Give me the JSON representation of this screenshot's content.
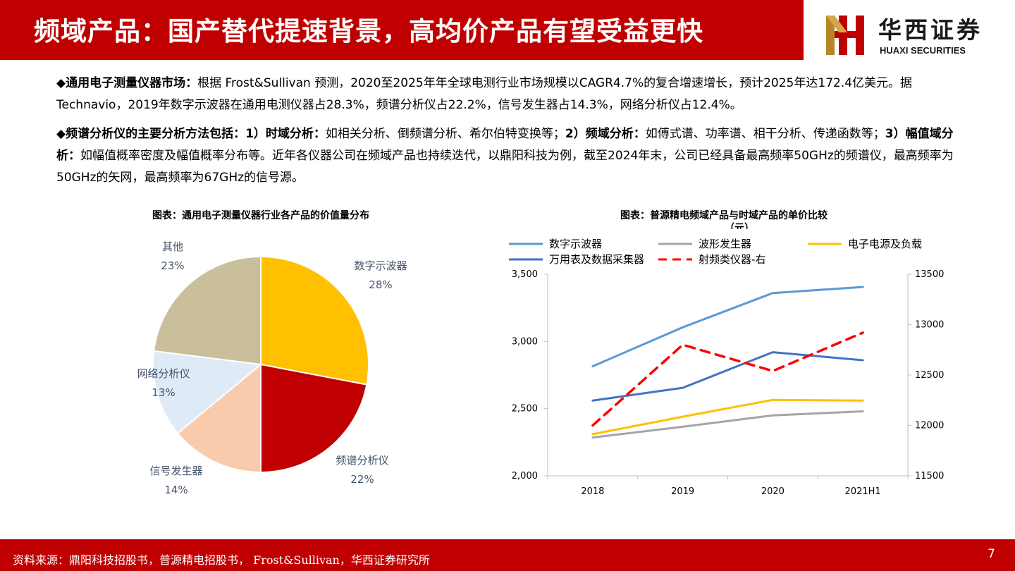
{
  "header": {
    "title": "频域产品：国产替代提速背景，高均价产品有望受益更快",
    "logo_cn": "华西证券",
    "logo_en": "HUAXI SECURITIES",
    "brand_color": "#c00000"
  },
  "paragraphs": [
    {
      "bullet": "◆",
      "bold_lead": "通用电子测量仪器市场：",
      "text": "根据 Frost&Sullivan 预测，2020至2025年年全球电测行业市场规模以CAGR4.7%的复合增速增长，预计2025年达172.4亿美元。据Technavio，2019年数字示波器在通用电测仪器占28.3%，频谱分析仪占22.2%，信号发生器占14.3%，网络分析仪占12.4%。"
    },
    {
      "bullet": "◆",
      "bold_lead": "频谱分析仪的主要分析方法包括：",
      "seg1_bold": "1）时域分析：",
      "seg1": "如相关分析、倒频谱分析、希尔伯特变换等；",
      "seg2_bold": "2）频域分析：",
      "seg2": "如傅式谱、功率谱、相干分析、传递函数等；",
      "seg3_bold": "3）幅值域分析：",
      "seg3": "如幅值概率密度及幅值概率分布等。近年各仪器公司在频域产品也持续迭代，以鼎阳科技为例，截至2024年末，公司已经具备最高频率50GHz的频谱仪，最高频率为50GHz的矢网，最高频率为67GHz的信号源。"
    }
  ],
  "pie_chart": {
    "title": "图表：通用电子测量仪器行业各产品的价值量分布"
  },
  "line_chart": {
    "title": "图表：普源精电频域产品与时域产品的单价比较",
    "title_unit": "（元）"
  },
  "chart_data": [
    {
      "type": "pie",
      "title": "图表：通用电子测量仪器行业各产品的价值量分布",
      "slices": [
        {
          "label": "数字示波器",
          "value": 28,
          "display": "28%",
          "color": "#ffc000"
        },
        {
          "label": "频谱分析仪",
          "value": 22,
          "display": "22%",
          "color": "#c00000"
        },
        {
          "label": "信号发生器",
          "value": 14,
          "display": "14%",
          "color": "#f8cbad"
        },
        {
          "label": "网络分析仪",
          "value": 13,
          "display": "13%",
          "color": "#deebf7"
        },
        {
          "label": "其他",
          "value": 23,
          "display": "23%",
          "color": "#c9bf9a"
        }
      ],
      "start_angle_deg": 0,
      "direction": "clockwise"
    },
    {
      "type": "line",
      "title": "图表：普源精电频域产品与时域产品的单价比较（元）",
      "categories": [
        "2018",
        "2019",
        "2020",
        "2021H1"
      ],
      "ylim_left": [
        2000,
        3500
      ],
      "yticks_left": [
        2000,
        2500,
        3000,
        3500
      ],
      "yticklabels_left": [
        "2,000",
        "2,500",
        "3,000",
        "3,500"
      ],
      "ylim_right": [
        11500,
        13500
      ],
      "yticks_right": [
        11500,
        12000,
        12500,
        13000,
        13500
      ],
      "yticklabels_right": [
        "11500",
        "12000",
        "12500",
        "13000",
        "13500"
      ],
      "grid": false,
      "legend": "top",
      "series": [
        {
          "name": "数字示波器",
          "axis": "left",
          "values": [
            2815,
            3105,
            3360,
            3405
          ],
          "color": "#5b9bd5",
          "dash": false
        },
        {
          "name": "波形发生器",
          "axis": "left",
          "values": [
            2285,
            2365,
            2450,
            2480
          ],
          "color": "#a5a5a5",
          "dash": false
        },
        {
          "name": "电子电源及负载",
          "axis": "left",
          "values": [
            2310,
            2440,
            2565,
            2560
          ],
          "color": "#ffc000",
          "dash": false
        },
        {
          "name": "万用表及数据采集器",
          "axis": "left",
          "values": [
            2560,
            2655,
            2920,
            2860
          ],
          "color": "#4472c4",
          "dash": false
        },
        {
          "name": "射频类仪器-右",
          "axis": "right",
          "values": [
            12000,
            12800,
            12540,
            12920
          ],
          "color": "#ff0000",
          "dash": true
        }
      ]
    }
  ],
  "footer": {
    "source": "资料来源：鼎阳科技招股书，普源精电招股书， Frost&Sullivan，华西证券研究所",
    "page": "7"
  }
}
